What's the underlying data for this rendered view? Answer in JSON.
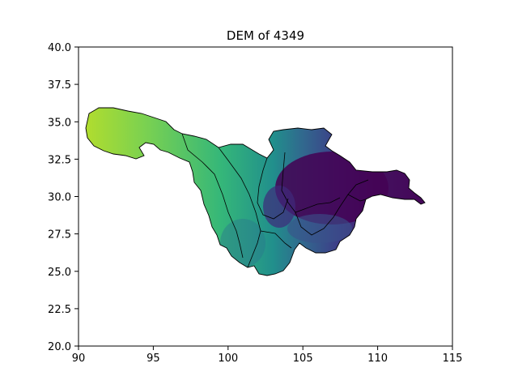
{
  "title": "DEM of 4349",
  "xticks": [
    "90",
    "95",
    "100",
    "105",
    "110",
    "115"
  ],
  "yticks": [
    "20.0",
    "22.5",
    "25.0",
    "27.5",
    "30.0",
    "32.5",
    "35.0",
    "37.5",
    "40.0"
  ],
  "axes": {
    "xlim": [
      90,
      115
    ],
    "ylim": [
      20,
      40
    ]
  },
  "colormap": "viridis",
  "colors": {
    "high": "#8fd14f",
    "upper_mid": "#3fb86e",
    "mid": "#21918c",
    "low_mid": "#3b528b",
    "low": "#440154"
  }
}
